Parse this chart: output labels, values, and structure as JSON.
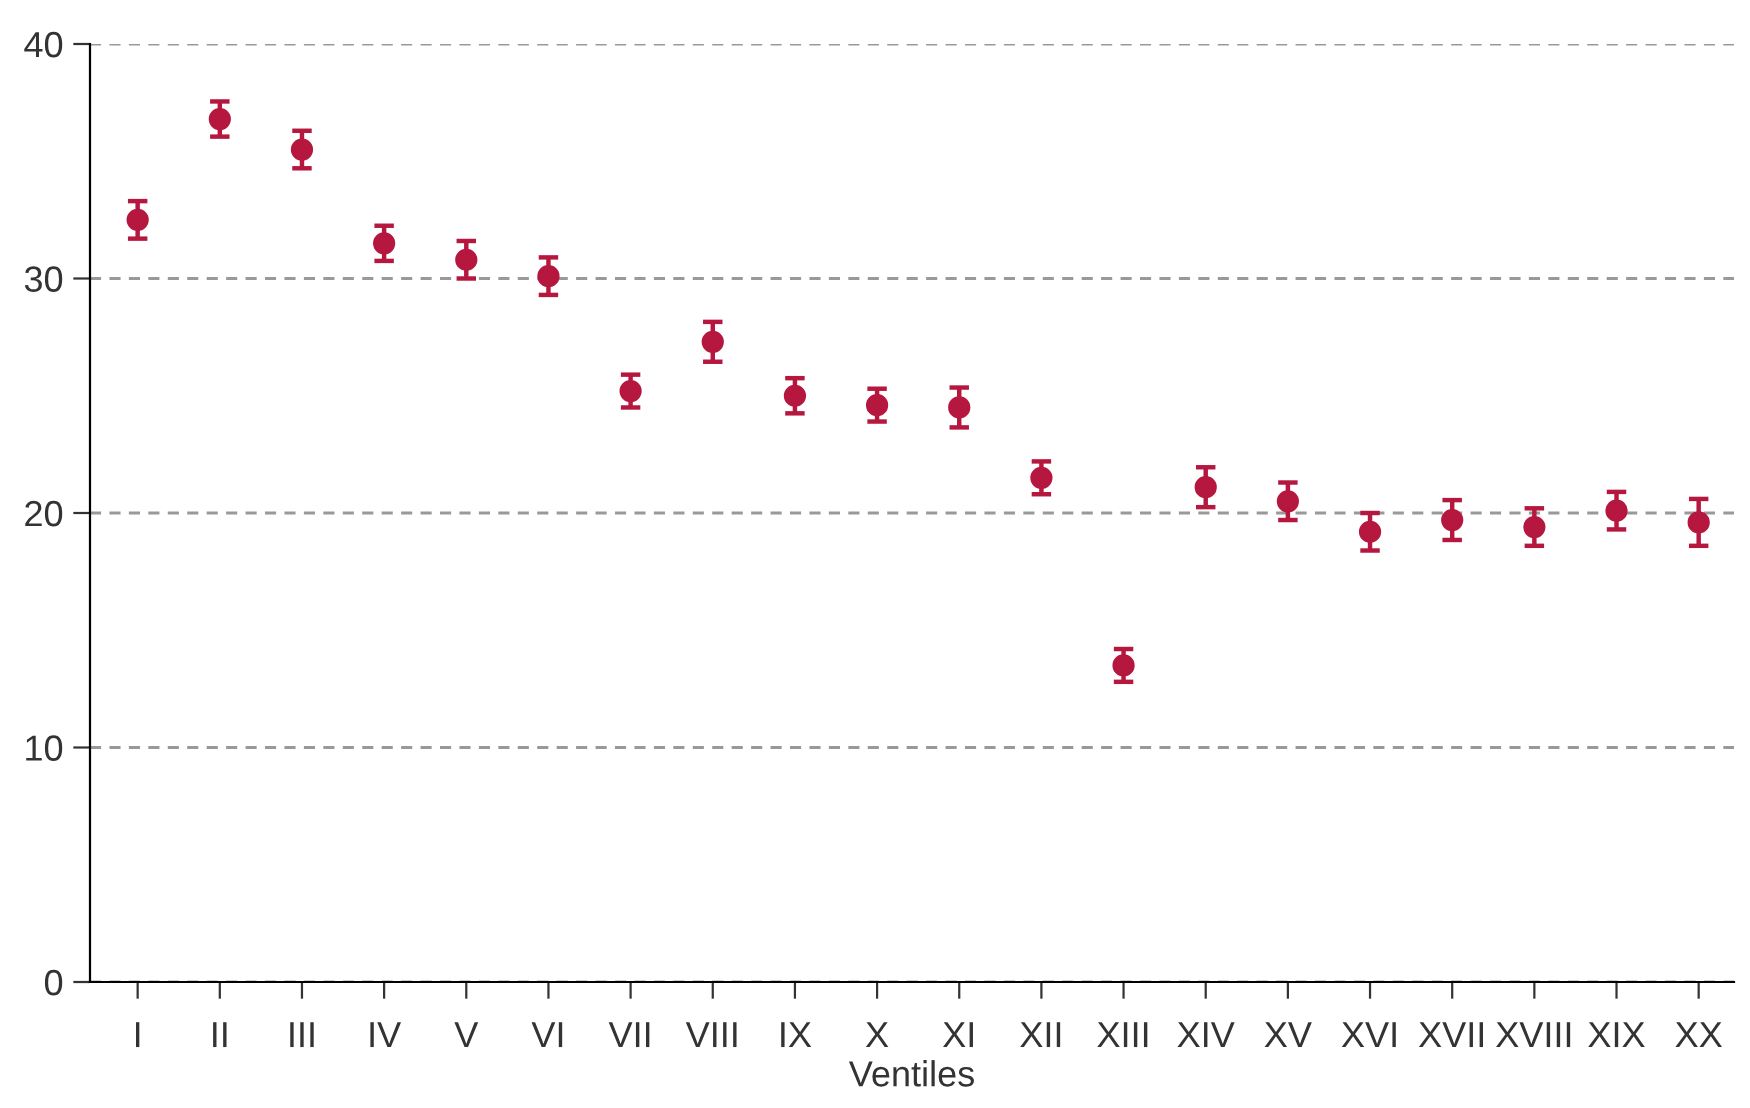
{
  "chart_data": {
    "type": "scatter",
    "xlabel": "Ventiles",
    "categories": [
      "I",
      "II",
      "III",
      "IV",
      "V",
      "VI",
      "VII",
      "VIII",
      "IX",
      "X",
      "XI",
      "XII",
      "XIII",
      "XIV",
      "XV",
      "XVI",
      "XVII",
      "XVIII",
      "XIX",
      "XX"
    ],
    "values": [
      32.5,
      36.8,
      35.5,
      31.5,
      30.8,
      30.1,
      25.2,
      27.3,
      25.0,
      24.6,
      24.5,
      21.5,
      13.5,
      21.1,
      20.5,
      19.2,
      19.7,
      19.4,
      20.1,
      19.6
    ],
    "errors": [
      0.8,
      0.75,
      0.8,
      0.75,
      0.8,
      0.8,
      0.7,
      0.85,
      0.75,
      0.7,
      0.85,
      0.7,
      0.7,
      0.85,
      0.8,
      0.8,
      0.85,
      0.8,
      0.8,
      1.0
    ],
    "color": "#b5173f",
    "marker": "circle",
    "ylim": [
      0,
      40
    ],
    "yticks": [
      0,
      10,
      20,
      30,
      40
    ],
    "grid": "y"
  }
}
